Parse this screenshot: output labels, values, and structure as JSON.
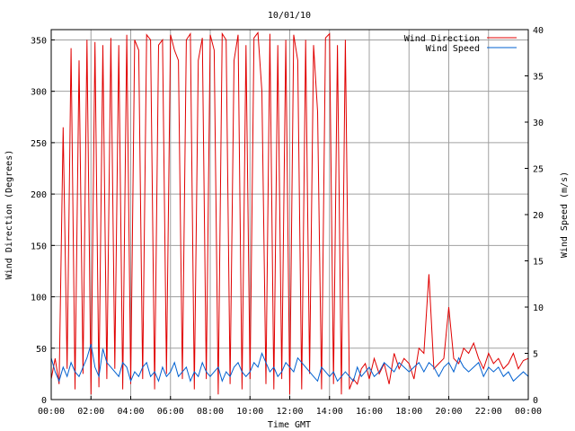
{
  "chart_data": {
    "type": "line",
    "title": "10/01/10",
    "xlabel": "Time GMT",
    "ylabel_left": "Wind Direction (Degrees)",
    "ylabel_right": "Wind Speed (m/s)",
    "x_ticks": [
      "00:00",
      "02:00",
      "04:00",
      "06:00",
      "08:00",
      "10:00",
      "12:00",
      "14:00",
      "16:00",
      "18:00",
      "20:00",
      "22:00",
      "00:00"
    ],
    "x_range_hours": [
      0,
      24
    ],
    "y_left_range": [
      0,
      360
    ],
    "y_left_ticks": [
      0,
      50,
      100,
      150,
      200,
      250,
      300,
      350
    ],
    "y_right_range": [
      0,
      40
    ],
    "y_right_ticks": [
      0,
      5,
      10,
      15,
      20,
      25,
      30,
      35,
      40
    ],
    "grid": true,
    "legend_position": "top-right",
    "series": [
      {
        "name": "Wind Direction",
        "axis": "left",
        "color": "#e00000",
        "x_hours": [
          0.0,
          0.2,
          0.4,
          0.6,
          0.8,
          1.0,
          1.2,
          1.4,
          1.6,
          1.8,
          2.0,
          2.2,
          2.4,
          2.6,
          2.8,
          3.0,
          3.2,
          3.4,
          3.6,
          3.8,
          4.0,
          4.2,
          4.4,
          4.6,
          4.8,
          5.0,
          5.2,
          5.4,
          5.6,
          5.8,
          6.0,
          6.2,
          6.4,
          6.6,
          6.8,
          7.0,
          7.2,
          7.4,
          7.6,
          7.8,
          8.0,
          8.2,
          8.4,
          8.6,
          8.8,
          9.0,
          9.2,
          9.4,
          9.6,
          9.8,
          10.0,
          10.2,
          10.4,
          10.6,
          10.8,
          11.0,
          11.2,
          11.4,
          11.6,
          11.8,
          12.0,
          12.2,
          12.4,
          12.6,
          12.8,
          13.0,
          13.2,
          13.4,
          13.6,
          13.8,
          14.0,
          14.2,
          14.4,
          14.6,
          14.8,
          15.0,
          15.2,
          15.4,
          15.6,
          15.8,
          16.0,
          16.25,
          16.5,
          16.75,
          17.0,
          17.25,
          17.5,
          17.75,
          18.0,
          18.25,
          18.5,
          18.75,
          19.0,
          19.25,
          19.5,
          19.75,
          20.0,
          20.25,
          20.5,
          20.75,
          21.0,
          21.25,
          21.5,
          21.75,
          22.0,
          22.25,
          22.5,
          22.75,
          23.0,
          23.25,
          23.5,
          23.75,
          24.0
        ],
        "values": [
          20,
          40,
          15,
          265,
          30,
          342,
          10,
          330,
          25,
          350,
          5,
          348,
          12,
          345,
          20,
          352,
          30,
          345,
          10,
          355,
          15,
          350,
          340,
          20,
          355,
          350,
          10,
          345,
          350,
          25,
          355,
          340,
          330,
          20,
          350,
          356,
          10,
          330,
          352,
          20,
          355,
          340,
          5,
          356,
          350,
          15,
          330,
          355,
          10,
          345,
          20,
          352,
          357,
          300,
          15,
          356,
          10,
          345,
          20,
          350,
          5,
          355,
          330,
          10,
          350,
          25,
          345,
          280,
          10,
          352,
          356,
          15,
          345,
          5,
          350,
          10,
          20,
          15,
          30,
          35,
          20,
          40,
          25,
          35,
          15,
          45,
          30,
          40,
          35,
          20,
          50,
          45,
          122,
          30,
          35,
          40,
          90,
          40,
          35,
          50,
          45,
          55,
          40,
          30,
          45,
          35,
          40,
          30,
          35,
          45,
          30,
          38,
          40
        ]
      },
      {
        "name": "Wind Speed",
        "axis": "right",
        "color": "#0060d0",
        "x_hours": [
          0.0,
          0.2,
          0.4,
          0.6,
          0.8,
          1.0,
          1.2,
          1.4,
          1.6,
          1.8,
          2.0,
          2.2,
          2.4,
          2.6,
          2.8,
          3.0,
          3.2,
          3.4,
          3.6,
          3.8,
          4.0,
          4.2,
          4.4,
          4.6,
          4.8,
          5.0,
          5.2,
          5.4,
          5.6,
          5.8,
          6.0,
          6.2,
          6.4,
          6.6,
          6.8,
          7.0,
          7.2,
          7.4,
          7.6,
          7.8,
          8.0,
          8.2,
          8.4,
          8.6,
          8.8,
          9.0,
          9.2,
          9.4,
          9.6,
          9.8,
          10.0,
          10.2,
          10.4,
          10.6,
          10.8,
          11.0,
          11.2,
          11.4,
          11.6,
          11.8,
          12.0,
          12.2,
          12.4,
          12.6,
          12.8,
          13.0,
          13.2,
          13.4,
          13.6,
          13.8,
          14.0,
          14.2,
          14.4,
          14.6,
          14.8,
          15.0,
          15.2,
          15.4,
          15.6,
          15.8,
          16.0,
          16.25,
          16.5,
          16.75,
          17.0,
          17.25,
          17.5,
          17.75,
          18.0,
          18.25,
          18.5,
          18.75,
          19.0,
          19.25,
          19.5,
          19.75,
          20.0,
          20.25,
          20.5,
          20.75,
          21.0,
          21.25,
          21.5,
          21.75,
          22.0,
          22.25,
          22.5,
          22.75,
          23.0,
          23.25,
          23.5,
          23.75,
          24.0
        ],
        "values": [
          4.5,
          3.0,
          2.0,
          3.5,
          2.5,
          4.0,
          3.0,
          2.5,
          3.5,
          4.5,
          6.0,
          3.5,
          2.5,
          5.5,
          4.0,
          3.5,
          3.0,
          2.5,
          4.0,
          3.5,
          2.0,
          3.0,
          2.5,
          3.5,
          4.0,
          2.5,
          3.0,
          2.0,
          3.5,
          2.5,
          3.0,
          4.0,
          2.5,
          3.0,
          3.5,
          2.0,
          3.0,
          2.5,
          4.0,
          3.0,
          2.5,
          3.0,
          3.5,
          2.0,
          3.0,
          2.5,
          3.5,
          4.0,
          3.0,
          2.5,
          3.0,
          4.0,
          3.5,
          5.0,
          4.0,
          3.0,
          3.5,
          2.5,
          3.0,
          4.0,
          3.5,
          3.0,
          4.5,
          4.0,
          3.5,
          3.0,
          2.5,
          2.0,
          3.5,
          3.0,
          2.5,
          3.0,
          2.0,
          2.5,
          3.0,
          2.5,
          2.0,
          3.5,
          2.5,
          3.0,
          3.5,
          2.5,
          3.0,
          4.0,
          3.5,
          3.0,
          4.0,
          3.5,
          3.0,
          3.5,
          4.0,
          3.0,
          4.0,
          3.5,
          2.5,
          3.5,
          4.0,
          3.0,
          4.5,
          3.5,
          3.0,
          3.5,
          4.0,
          2.5,
          3.5,
          3.0,
          3.5,
          2.5,
          3.0,
          2.0,
          2.5,
          3.0,
          2.5
        ]
      }
    ]
  }
}
